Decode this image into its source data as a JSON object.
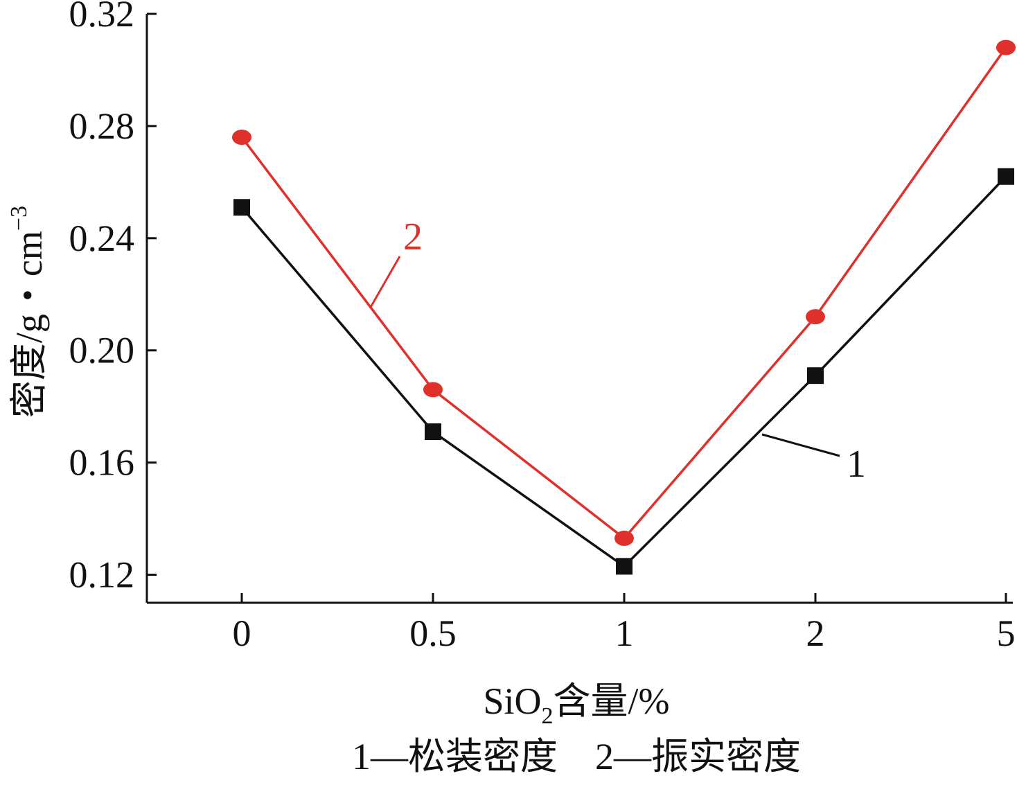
{
  "chart_data": {
    "type": "line",
    "categories": [
      "0",
      "0.5",
      "1",
      "2",
      "5"
    ],
    "series": [
      {
        "name": "1",
        "values": [
          0.251,
          0.171,
          0.123,
          0.191,
          0.262
        ],
        "color": "#111111",
        "marker": "square"
      },
      {
        "name": "2",
        "values": [
          0.276,
          0.186,
          0.133,
          0.212,
          0.308
        ],
        "color": "#e0302b",
        "marker": "circle"
      }
    ],
    "ylim": [
      0.11,
      0.32
    ],
    "yticks": [
      "0.32",
      "0.28",
      "0.24",
      "0.20",
      "0.16",
      "0.12"
    ],
    "ylabel": "密度/g・cm",
    "ylabel_sup": "−3",
    "xlabel_pre": "SiO",
    "xlabel_sub": "2",
    "xlabel_post": "含量/%",
    "legend_text": "1—松装密度　2—振实密度",
    "grid": false
  }
}
